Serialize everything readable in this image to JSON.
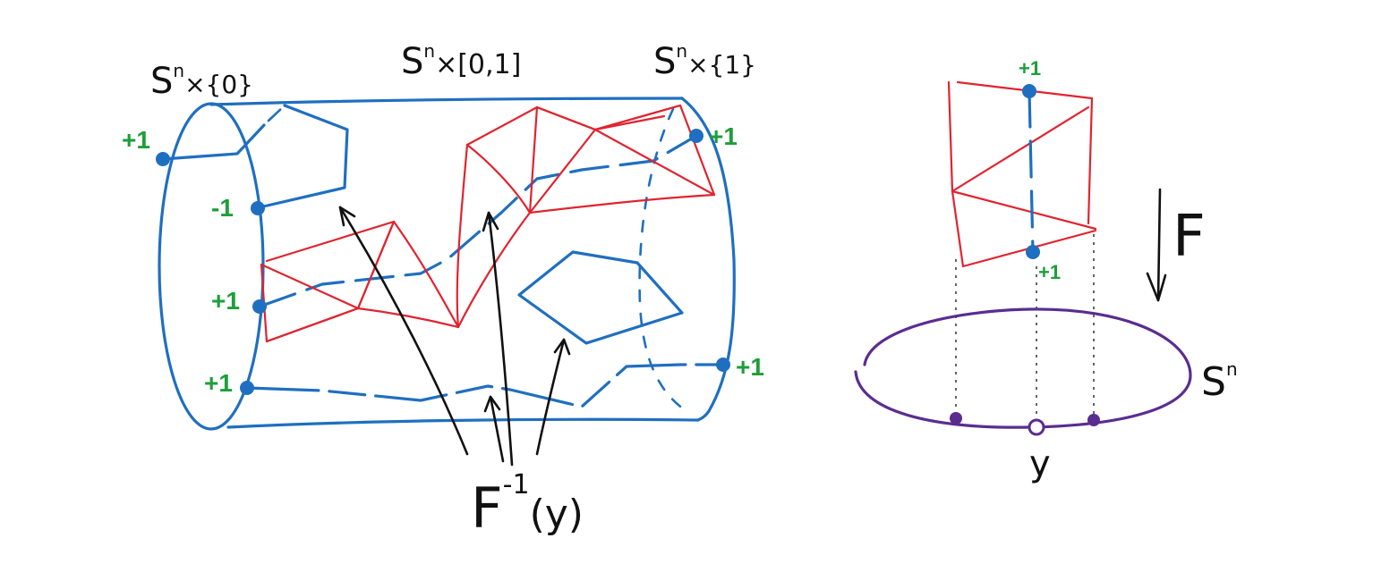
{
  "labels": {
    "left_end": "S",
    "left_end_sup": "n",
    "left_end_rest": "×{0}",
    "middle": "S",
    "middle_sup": "n",
    "middle_rest": "×[0,1]",
    "right_end": "S",
    "right_end_sup": "n",
    "right_end_rest": "×{1}",
    "preimage_main": "F",
    "preimage_sup": "-1",
    "preimage_arg": "(y)",
    "map_label": "F",
    "base_space": "S",
    "base_space_sup": "n",
    "point_label": "y"
  },
  "signs": {
    "left_top": "+1",
    "left_second": "-1",
    "left_third": "+1",
    "left_bottom": "+1",
    "right_top": "+1",
    "right_bottom": "+1",
    "fiber_top": "+1",
    "fiber_bottom": "+1"
  },
  "colors": {
    "cylinder": "#1f6fc0",
    "triangulation": "#e0242f",
    "sign_text": "#1e9e3a",
    "circle": "#5a2d91",
    "ink": "#111111"
  }
}
